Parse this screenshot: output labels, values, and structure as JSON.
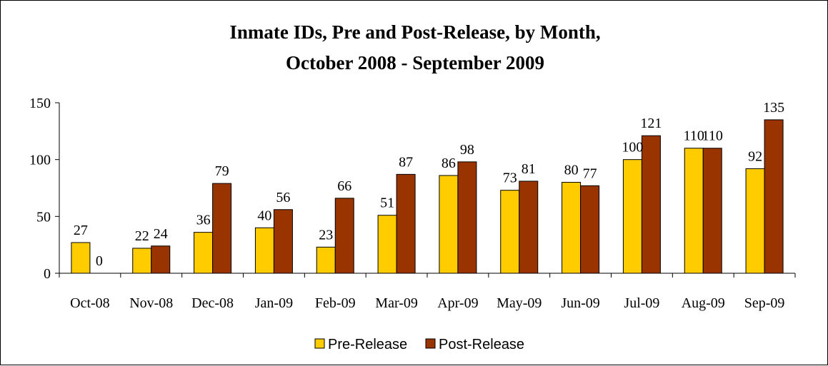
{
  "chart_data": {
    "type": "bar",
    "title": "Inmate IDs, Pre and Post-Release, by Month,",
    "subtitle": "October 2008 - September 2009",
    "xlabel": "",
    "ylabel": "",
    "categories": [
      "Oct-08",
      "Nov-08",
      "Dec-08",
      "Jan-09",
      "Feb-09",
      "Mar-09",
      "Apr-09",
      "May-09",
      "Jun-09",
      "Jul-09",
      "Aug-09",
      "Sep-09"
    ],
    "series": [
      {
        "name": "Pre-Release",
        "color": "#FFCC00",
        "values": [
          27,
          22,
          36,
          40,
          23,
          51,
          86,
          73,
          80,
          100,
          110,
          92
        ]
      },
      {
        "name": "Post-Release",
        "color": "#993300",
        "values": [
          0,
          24,
          79,
          56,
          66,
          87,
          98,
          81,
          77,
          121,
          110,
          135
        ]
      }
    ],
    "ylim": [
      0,
      150
    ],
    "yticks": [
      0,
      50,
      100,
      150
    ],
    "grid": false,
    "legend_position": "bottom",
    "data_labels": true
  }
}
